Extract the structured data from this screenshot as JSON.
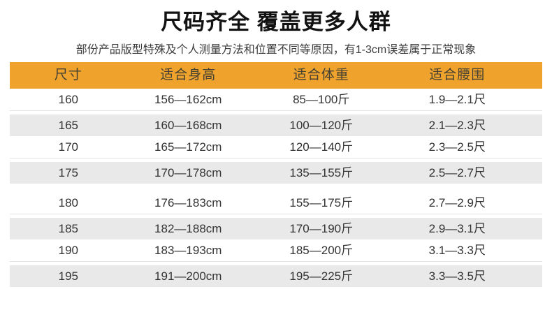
{
  "header": {
    "title": "尺码齐全 覆盖更多人群",
    "subtitle": "部份产品版型特殊及个人测量方法和位置不同等原因，有1-3cm误差属于正常现象"
  },
  "chart_data": {
    "type": "table",
    "title": "尺码齐全 覆盖更多人群",
    "subtitle": "部份产品版型特殊及个人测量方法和位置不同等原因，有1-3cm误差属于正常现象",
    "columns": [
      "尺寸",
      "适合身高",
      "适合体重",
      "适合腰围"
    ],
    "rows": [
      [
        "160",
        "156—162cm",
        "85—100斤",
        "1.9—2.1尺"
      ],
      [
        "165",
        "160—168cm",
        "100—120斤",
        "2.1—2.3尺"
      ],
      [
        "170",
        "165—172cm",
        "120—140斤",
        "2.3—2.5尺"
      ],
      [
        "175",
        "170—178cm",
        "135—155斤",
        "2.5—2.7尺"
      ],
      [
        "180",
        "176—183cm",
        "155—175斤",
        "2.7—2.9尺"
      ],
      [
        "185",
        "182—188cm",
        "170—190斤",
        "2.9—3.1尺"
      ],
      [
        "190",
        "183—193cm",
        "185—200斤",
        "3.1—3.3尺"
      ],
      [
        "195",
        "191—200cm",
        "195—225斤",
        "3.3—3.5尺"
      ]
    ],
    "layout": {
      "alternating_row_shading": true,
      "group_gap_after_row_index": 3
    }
  },
  "colors": {
    "header_band_bg": "#EFA32C",
    "header_band_text": "#464032",
    "alt_row_bg": "#E9E9E9",
    "row_divider": "#E2E2E2",
    "body_text": "#333333",
    "title_text": "#121212",
    "background": "#FFFFFF"
  }
}
